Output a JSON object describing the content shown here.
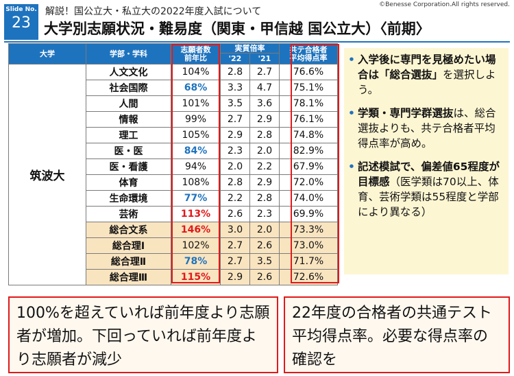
{
  "slide": {
    "label": "Slide No.",
    "number": "23"
  },
  "copyright": "©Benesse Corporation.All rights reserved.",
  "subtitle": "解説！国公立大・私立大の2022年度入試について",
  "title": "大学別志願状況・難易度（関東・甲信越 国公立大）〈前期〉",
  "table": {
    "headers": {
      "university": "大学",
      "department": "学部・学科",
      "applicants_line1": "志願者数",
      "applicants_line2": "前年比",
      "ratio": "実質倍率",
      "year22": "'22",
      "year21": "'21",
      "score_line1": "共テ合格者",
      "score_line2": "平均得点率"
    },
    "university": "筑波大",
    "rows": [
      {
        "dept": "人文文化",
        "change": "104%",
        "r22": "2.8",
        "r21": "2.7",
        "score": "76.6%"
      },
      {
        "dept": "社会国際",
        "change": "68%",
        "r22": "3.3",
        "r21": "4.7",
        "score": "75.1%"
      },
      {
        "dept": "人間",
        "change": "101%",
        "r22": "3.5",
        "r21": "3.6",
        "score": "78.1%"
      },
      {
        "dept": "情報",
        "change": "99%",
        "r22": "2.7",
        "r21": "2.9",
        "score": "76.1%"
      },
      {
        "dept": "理工",
        "change": "105%",
        "r22": "2.9",
        "r21": "2.8",
        "score": "74.8%"
      },
      {
        "dept": "医・医",
        "change": "84%",
        "r22": "2.3",
        "r21": "2.0",
        "score": "82.9%"
      },
      {
        "dept": "医・看護",
        "change": "94%",
        "r22": "2.0",
        "r21": "2.2",
        "score": "67.9%"
      },
      {
        "dept": "体育",
        "change": "108%",
        "r22": "2.8",
        "r21": "2.9",
        "score": "72.0%"
      },
      {
        "dept": "生命環境",
        "change": "77%",
        "r22": "2.2",
        "r21": "2.8",
        "score": "74.0%"
      },
      {
        "dept": "芸術",
        "change": "113%",
        "r22": "2.6",
        "r21": "2.3",
        "score": "69.9%"
      },
      {
        "dept": "総合文系",
        "change": "146%",
        "r22": "3.0",
        "r21": "2.0",
        "score": "73.3%"
      },
      {
        "dept": "総合理Ⅰ",
        "change": "102%",
        "r22": "2.7",
        "r21": "2.6",
        "score": "73.0%"
      },
      {
        "dept": "総合理Ⅱ",
        "change": "78%",
        "r22": "2.7",
        "r21": "3.5",
        "score": "71.7%"
      },
      {
        "dept": "総合理Ⅲ",
        "change": "115%",
        "r22": "2.9",
        "r21": "2.6",
        "score": "72.6%"
      }
    ]
  },
  "notes": {
    "n1_bold": "入学後に専門を見極めたい場合は「総合選抜」",
    "n1_rest": "を選択しよう。",
    "n2_bold": "学類・専門学群選抜",
    "n2_rest": "は、総合選抜よりも、共テ合格者平均得点率が高め。",
    "n3_bold": "記述模試で、偏差値65程度が目標感",
    "n3_rest": "（医学類は70以上、体育、芸術学類は55程度と学部により異なる）"
  },
  "callouts": {
    "left": "100%を超えていれば前年度より志願者が増加。下回っていれば前年度より志願者が減少",
    "right": "22年度の合格者の共通テスト平均得点率。必要な得点率の確認を"
  },
  "colors": {
    "accent_blue": "#1e73be",
    "highlight_red": "#e0191a",
    "sogo_row_bg": "#f9e4c0",
    "notes_bg": "#fdf6d3"
  }
}
